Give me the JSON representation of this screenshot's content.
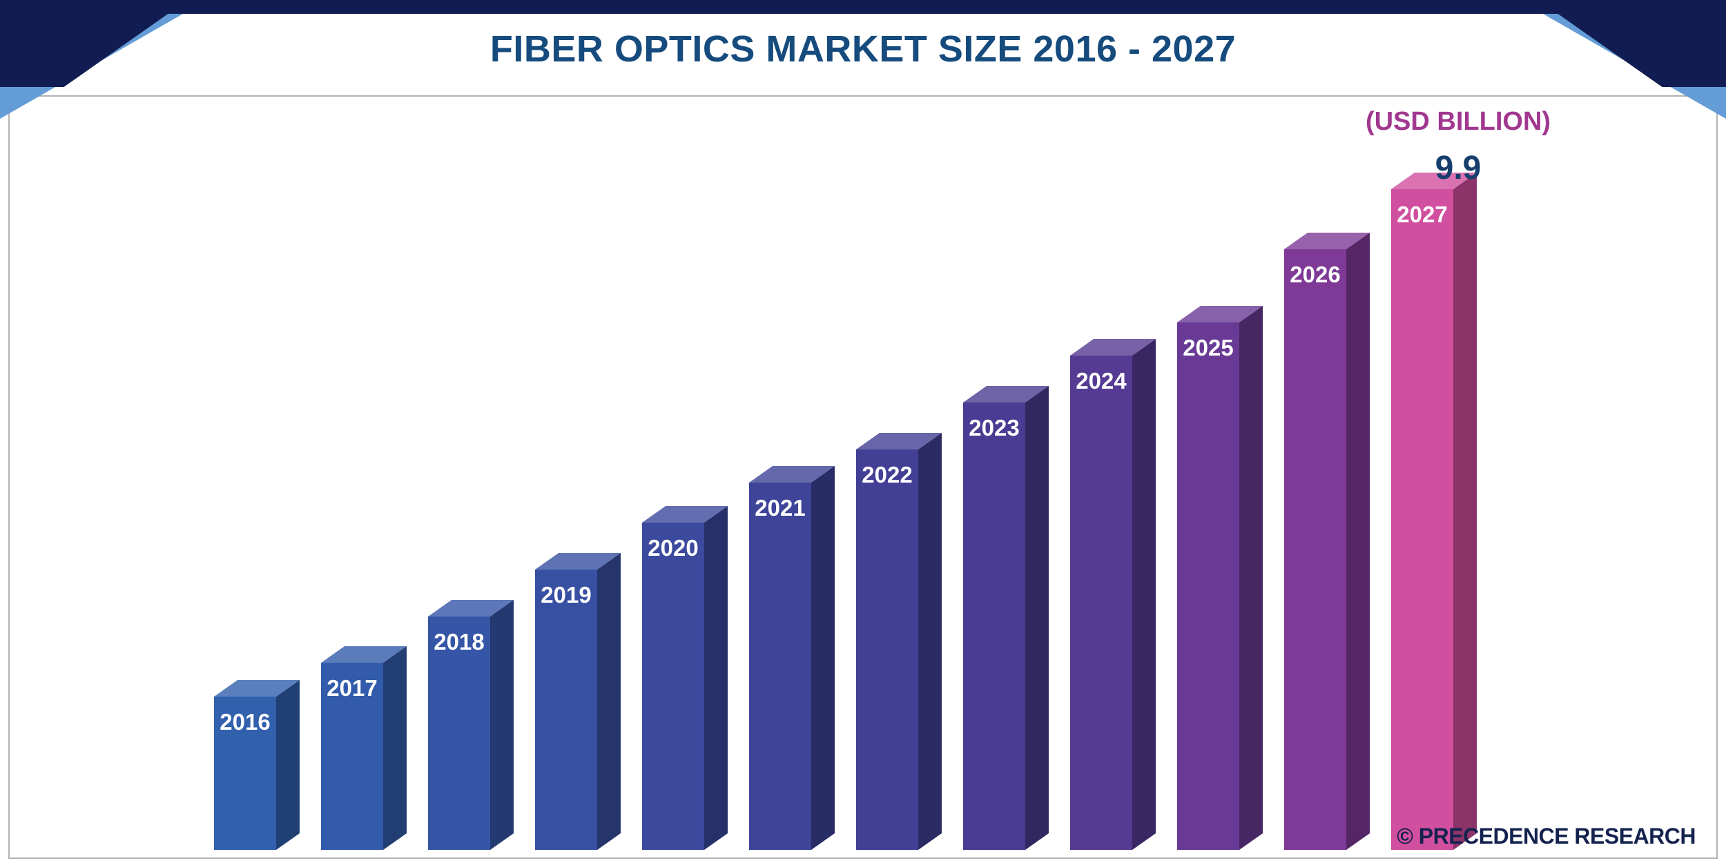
{
  "header": {
    "title": "FIBER OPTICS MARKET SIZE 2016 - 2027"
  },
  "chart": {
    "unit_label": "(USD BILLION)",
    "peak_value_label": "9.9"
  },
  "footer": {
    "watermark": "© PRECEDENCE RESEARCH"
  },
  "colors": {
    "title_text": "#164b7d",
    "corner_navy": "#111d52",
    "corner_light_blue": "#639cd6",
    "unit_label_text": "#a1388f",
    "peak_value_text": "#153e6d",
    "watermark_text": "#13224e",
    "chart_border": "#b3b3b3",
    "bar_label_text": "#ffffff"
  },
  "chart_data": {
    "type": "bar",
    "style": "3d-column",
    "title": "FIBER OPTICS MARKET SIZE 2016 - 2027",
    "unit": "USD Billion",
    "categories": [
      "2016",
      "2017",
      "2018",
      "2019",
      "2020",
      "2021",
      "2022",
      "2023",
      "2024",
      "2025",
      "2026",
      "2027"
    ],
    "values": [
      2.3,
      2.8,
      3.5,
      4.2,
      4.9,
      5.5,
      6.0,
      6.7,
      7.4,
      7.9,
      9.0,
      9.9
    ],
    "value_labels_shown": {
      "2027": "9.9"
    },
    "bar_colors": [
      "#3160ad",
      "#325cab",
      "#3556a7",
      "#3850a2",
      "#3b4a9d",
      "#3e4498",
      "#433f94",
      "#4a3c92",
      "#553b93",
      "#693a95",
      "#7f3a97",
      "#d14f9f"
    ],
    "ylim": [
      0,
      10.2
    ],
    "grid": false,
    "legend": false
  }
}
